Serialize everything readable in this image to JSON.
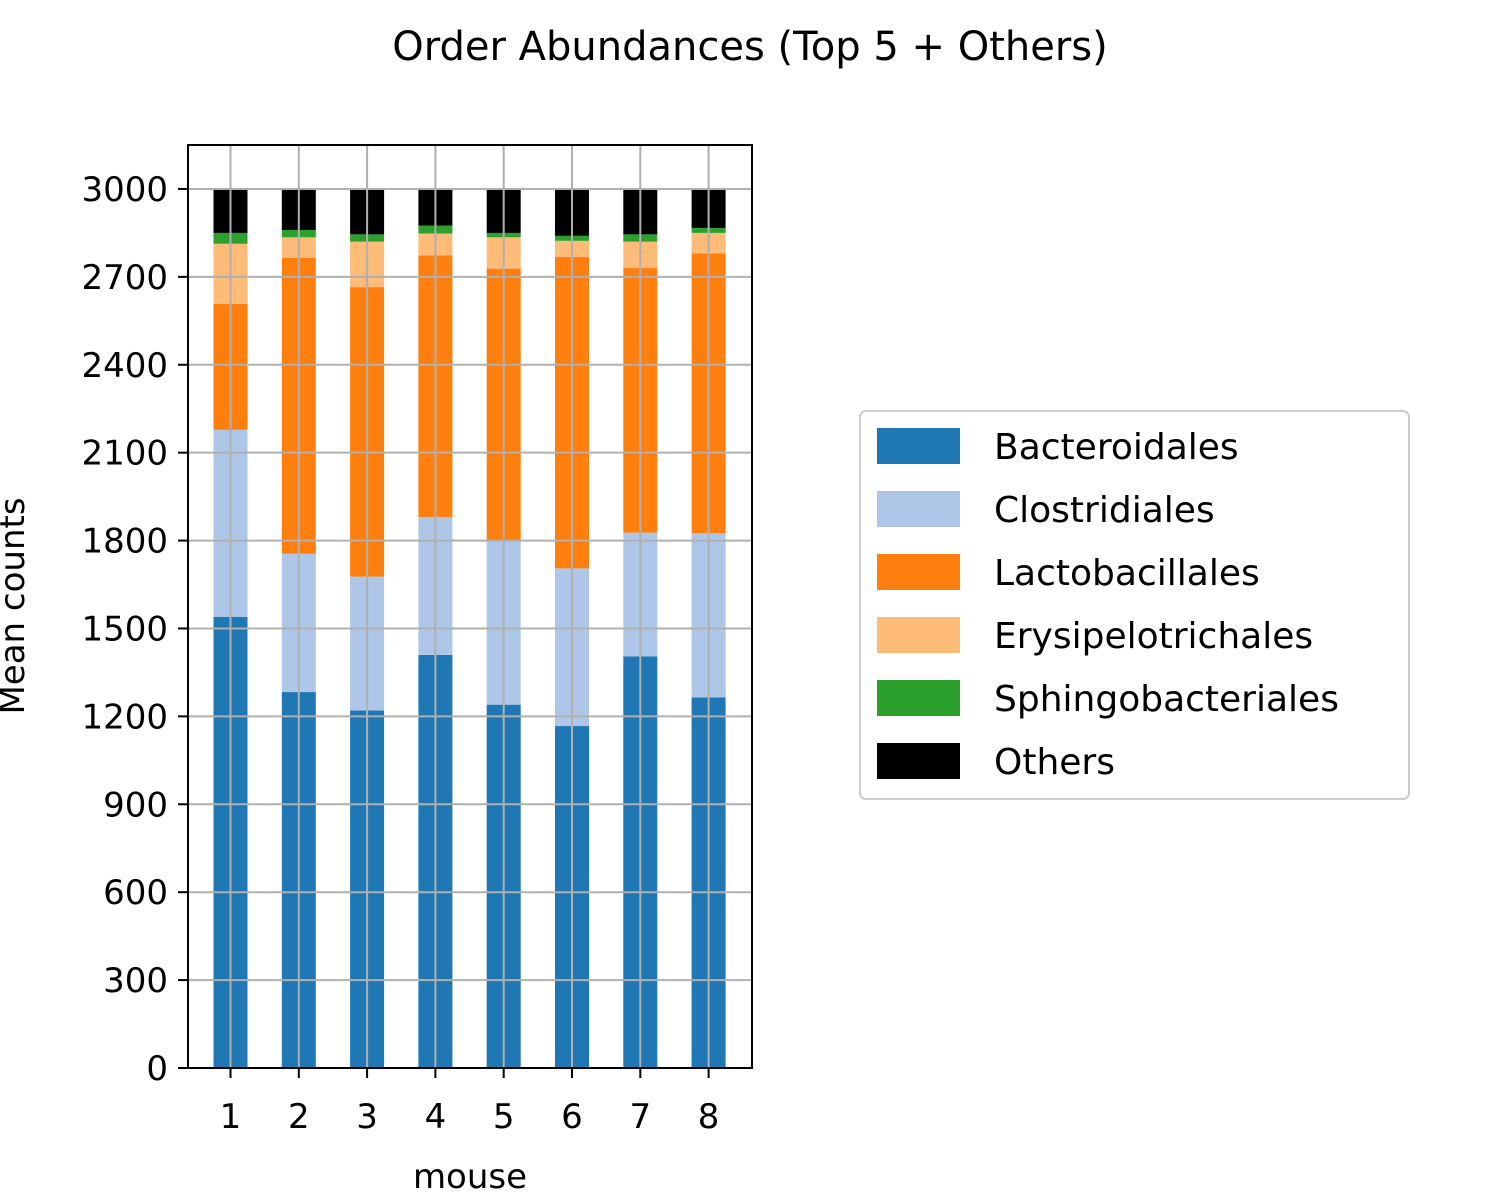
{
  "chart_data": {
    "type": "bar",
    "stacked": true,
    "title": "Order Abundances (Top 5  + Others)",
    "xlabel": "mouse",
    "ylabel": "Mean counts",
    "categories": [
      "1",
      "2",
      "3",
      "4",
      "5",
      "6",
      "7",
      "8"
    ],
    "ylim": [
      0,
      3150
    ],
    "yticks": [
      0,
      300,
      600,
      900,
      1200,
      1500,
      1800,
      2100,
      2400,
      2700,
      3000
    ],
    "grid": true,
    "legend_position": "right",
    "series": [
      {
        "name": "Bacteroidales",
        "color": "#1f77b4",
        "values": [
          1540,
          1283,
          1220,
          1410,
          1240,
          1167,
          1405,
          1265
        ]
      },
      {
        "name": "Clostridiales",
        "color": "#aec7e8",
        "values": [
          638,
          472,
          457,
          470,
          560,
          538,
          422,
          560
        ]
      },
      {
        "name": "Lactobacillales",
        "color": "#ff7f0e",
        "values": [
          430,
          1010,
          988,
          893,
          928,
          1063,
          903,
          955
        ]
      },
      {
        "name": "Erysipelotrichales",
        "color": "#ffbb78",
        "values": [
          205,
          70,
          155,
          75,
          107,
          55,
          90,
          70
        ]
      },
      {
        "name": "Sphingobacteriales",
        "color": "#2ca02c",
        "values": [
          37,
          25,
          25,
          27,
          15,
          17,
          25,
          17
        ]
      },
      {
        "name": "Others",
        "color": "#000000",
        "values": [
          150,
          140,
          155,
          125,
          150,
          160,
          155,
          133
        ]
      }
    ]
  }
}
